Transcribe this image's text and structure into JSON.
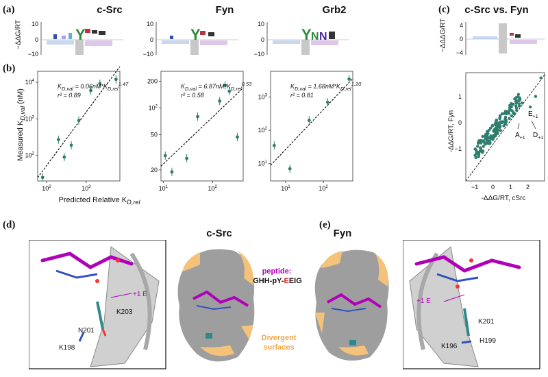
{
  "labels": {
    "a": "(a)",
    "b": "(b)",
    "c": "(c)",
    "d": "(d)",
    "e": "(e)"
  },
  "logo_axis": {
    "ylabel": "−ΔΔG/RT",
    "ticks": [
      "10",
      "0",
      "−10"
    ]
  },
  "logo_c_axis": {
    "ylabel": "−ΔΔΔG/RT",
    "ticks": [
      "4",
      "0",
      "−4"
    ]
  },
  "panels": [
    {
      "title": "c-Src",
      "eq_k": "K",
      "eq_sub": "D,val",
      "eq_mid": " = 0.06nM*K",
      "eq_sub2": "D,rel",
      "eq_exp": "1.47",
      "r2": "r² = 0.89"
    },
    {
      "title": "Fyn",
      "eq_k": "K",
      "eq_sub": "D,val",
      "eq_mid": " = 6.87nM*K",
      "eq_sub2": "D,rel",
      "eq_exp": "0.53",
      "r2": "r² = 0.58"
    },
    {
      "title": "Grb2",
      "eq_k": "K",
      "eq_sub": "D,val",
      "eq_mid": " = 1.68nM*K",
      "eq_sub2": "D,rel",
      "eq_exp": "1.20",
      "r2": "r² = 0.81"
    }
  ],
  "panel_c_title": "c-Src vs. Fyn",
  "b_ylabel": "Measured K",
  "b_ylabel_sub": "D,val",
  "b_ylabel_unit": " (nM)",
  "b_xlabel": "Predicted Relative K",
  "b_xlabel_sub": "D,rel",
  "c_ylabel": "-ΔΔG/RT, Fyn",
  "c_xlabel": "-ΔΔG/RT, cSrc",
  "c_points_labels": {
    "e": "E",
    "e_sub": "+1",
    "a": "A",
    "a_sub": "+1",
    "d": "D",
    "d_sub": "+1"
  },
  "structure": {
    "csrc_title": "c-Src",
    "fyn_title": "Fyn",
    "peptide_label": "peptide:",
    "peptide_seq_a": "GHH-pY-",
    "peptide_seq_e": "E",
    "peptide_seq_b": "EIG",
    "divergent": "Divergent\nsurfaces",
    "d_labels": {
      "plus1e": "+1 E",
      "k203": "K203",
      "n201": "N201",
      "k198": "K198"
    },
    "e_labels": {
      "plus1e": "+1 E",
      "k201": "K201",
      "k196": "K196",
      "h199": "H199"
    }
  },
  "colors": {
    "teal": "#2e7d6e",
    "magenta": "#b000b8",
    "orange": "#f5c27a",
    "gray": "#9a9a9a"
  },
  "chart_data": [
    {
      "type": "scatter",
      "title": "c-Src",
      "xlabel": "Predicted Relative KD,rel",
      "ylabel": "Measured KD,val (nM)",
      "x_scale": "log",
      "y_scale": "log",
      "xlim": [
        60,
        7000
      ],
      "ylim": [
        20,
        20000
      ],
      "x_ticks": [
        100,
        1000
      ],
      "y_ticks": [
        100,
        1000,
        10000
      ],
      "x": [
        80,
        200,
        280,
        420,
        650,
        1300,
        2200,
        5600
      ],
      "y": [
        25,
        270,
        90,
        190,
        900,
        6000,
        9200,
        12000
      ],
      "fit_exponent": 1.47,
      "fit_prefactor": 0.06
    },
    {
      "type": "scatter",
      "title": "Fyn",
      "x_scale": "log",
      "y_scale": "log",
      "xlim": [
        9,
        420
      ],
      "ylim": [
        15,
        260
      ],
      "x_ticks": [
        10,
        100
      ],
      "y_ticks": [
        20,
        50,
        100,
        200
      ],
      "x": [
        11,
        15,
        30,
        50,
        140,
        180,
        220,
        320
      ],
      "y": [
        29,
        19,
        27,
        80,
        120,
        180,
        155,
        47
      ],
      "fit_exponent": 0.53,
      "fit_prefactor": 6.87
    },
    {
      "type": "scatter",
      "title": "Grb2",
      "x_scale": "log",
      "y_scale": "log",
      "xlim": [
        4,
        600
      ],
      "ylim": [
        3,
        6000
      ],
      "x_ticks": [
        10,
        100
      ],
      "y_ticks": [
        10,
        100,
        1000
      ],
      "x": [
        5,
        13,
        42,
        130,
        480
      ],
      "y": [
        35,
        7,
        200,
        700,
        3500
      ],
      "fit_exponent": 1.2,
      "fit_prefactor": 1.68
    }
  ]
}
